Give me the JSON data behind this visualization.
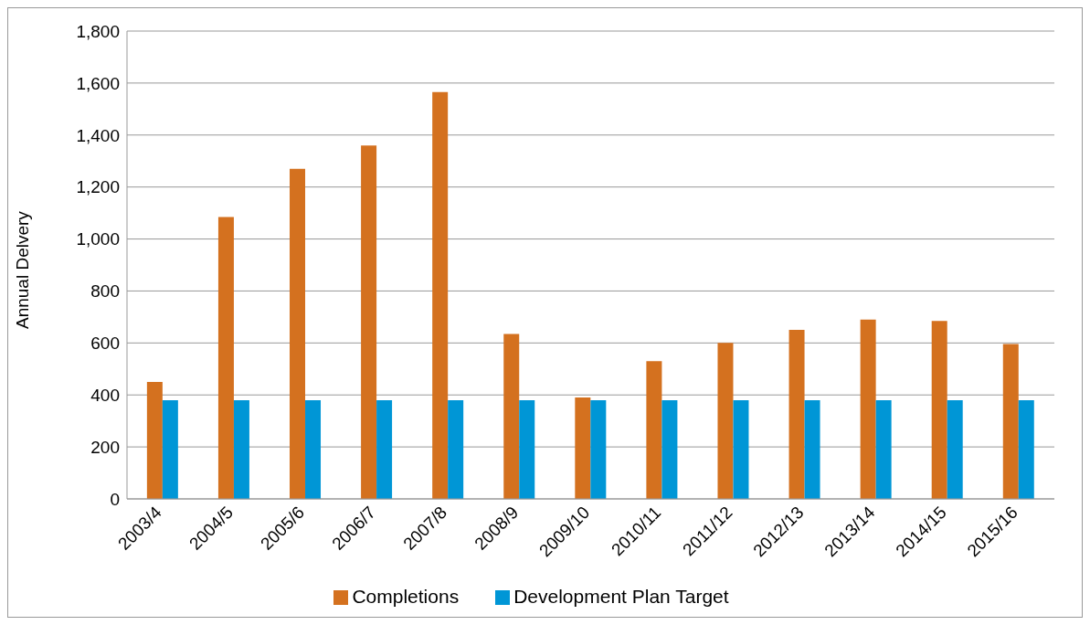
{
  "chart_data": {
    "type": "bar",
    "ylabel": "Annual Delvery",
    "categories": [
      "2003/4",
      "2004/5",
      "2005/6",
      "2006/7",
      "2007/8",
      "2008/9",
      "2009/10",
      "2010/11",
      "2011/12",
      "2012/13",
      "2013/14",
      "2014/15",
      "2015/16"
    ],
    "series": [
      {
        "name": "Completions",
        "color": "#d4711f",
        "values": [
          450,
          1085,
          1270,
          1360,
          1565,
          635,
          390,
          530,
          600,
          650,
          690,
          685,
          596
        ]
      },
      {
        "name": "Development Plan Target",
        "color": "#0096d6",
        "values": [
          380,
          380,
          380,
          380,
          380,
          380,
          380,
          380,
          380,
          380,
          380,
          380,
          380
        ]
      }
    ],
    "ylim": [
      0,
      1800
    ],
    "yticks": [
      0,
      200,
      400,
      600,
      800,
      {
        "value": 1000,
        "label": "1,000"
      },
      {
        "value": 1200,
        "label": "1,200"
      },
      {
        "value": 1400,
        "label": "1,400"
      },
      {
        "value": 1600,
        "label": "1,600"
      },
      {
        "value": 1800,
        "label": "1,800"
      }
    ],
    "grid": "y",
    "legend": "bottom"
  }
}
